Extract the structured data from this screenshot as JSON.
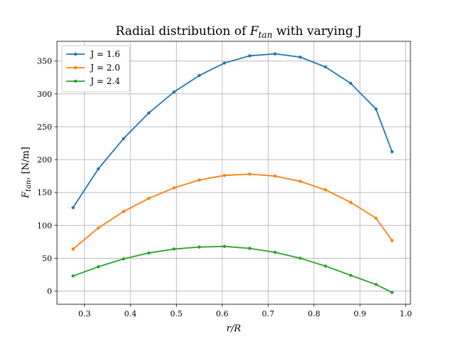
{
  "chart_data": {
    "type": "line",
    "title": "Radial distribution of F_tan with varying J",
    "title_parts": {
      "prefix": "Radial distribution of ",
      "symbol": "F",
      "subscript": "tan",
      "suffix": " with varying J"
    },
    "xlabel": "r/R",
    "ylabel": "F_tan, [N/m]",
    "ylabel_parts": {
      "symbol": "F",
      "subscript": "tan",
      "suffix": ", [N/m]"
    },
    "xlim": [
      0.24,
      1.01
    ],
    "ylim": [
      -20,
      380
    ],
    "xticks": [
      0.3,
      0.4,
      0.5,
      0.6,
      0.7,
      0.8,
      0.9,
      1.0
    ],
    "xtick_labels": [
      "0.3",
      "0.4",
      "0.5",
      "0.6",
      "0.7",
      "0.8",
      "0.9",
      "1.0"
    ],
    "yticks": [
      0,
      50,
      100,
      150,
      200,
      250,
      300,
      350
    ],
    "ytick_labels": [
      "0",
      "50",
      "100",
      "150",
      "200",
      "250",
      "300",
      "350"
    ],
    "grid": true,
    "legend_position": "top-left",
    "x": [
      0.275,
      0.33,
      0.385,
      0.44,
      0.495,
      0.55,
      0.605,
      0.66,
      0.715,
      0.77,
      0.825,
      0.88,
      0.935,
      0.97
    ],
    "series": [
      {
        "name": "J = 1.6",
        "color": "#1f77b4",
        "values": [
          127,
          186,
          232,
          271,
          303,
          328,
          347,
          358,
          361,
          356,
          341,
          316,
          277,
          212
        ]
      },
      {
        "name": "J = 2.0",
        "color": "#ff7f0e",
        "values": [
          64,
          96,
          121,
          141,
          157,
          169,
          176,
          178,
          175,
          167,
          154,
          135,
          111,
          77
        ]
      },
      {
        "name": "J = 2.4",
        "color": "#2ca02c",
        "values": [
          23,
          37,
          49,
          58,
          64,
          67,
          68,
          65,
          59,
          50,
          38,
          24,
          10,
          -2
        ]
      }
    ]
  }
}
